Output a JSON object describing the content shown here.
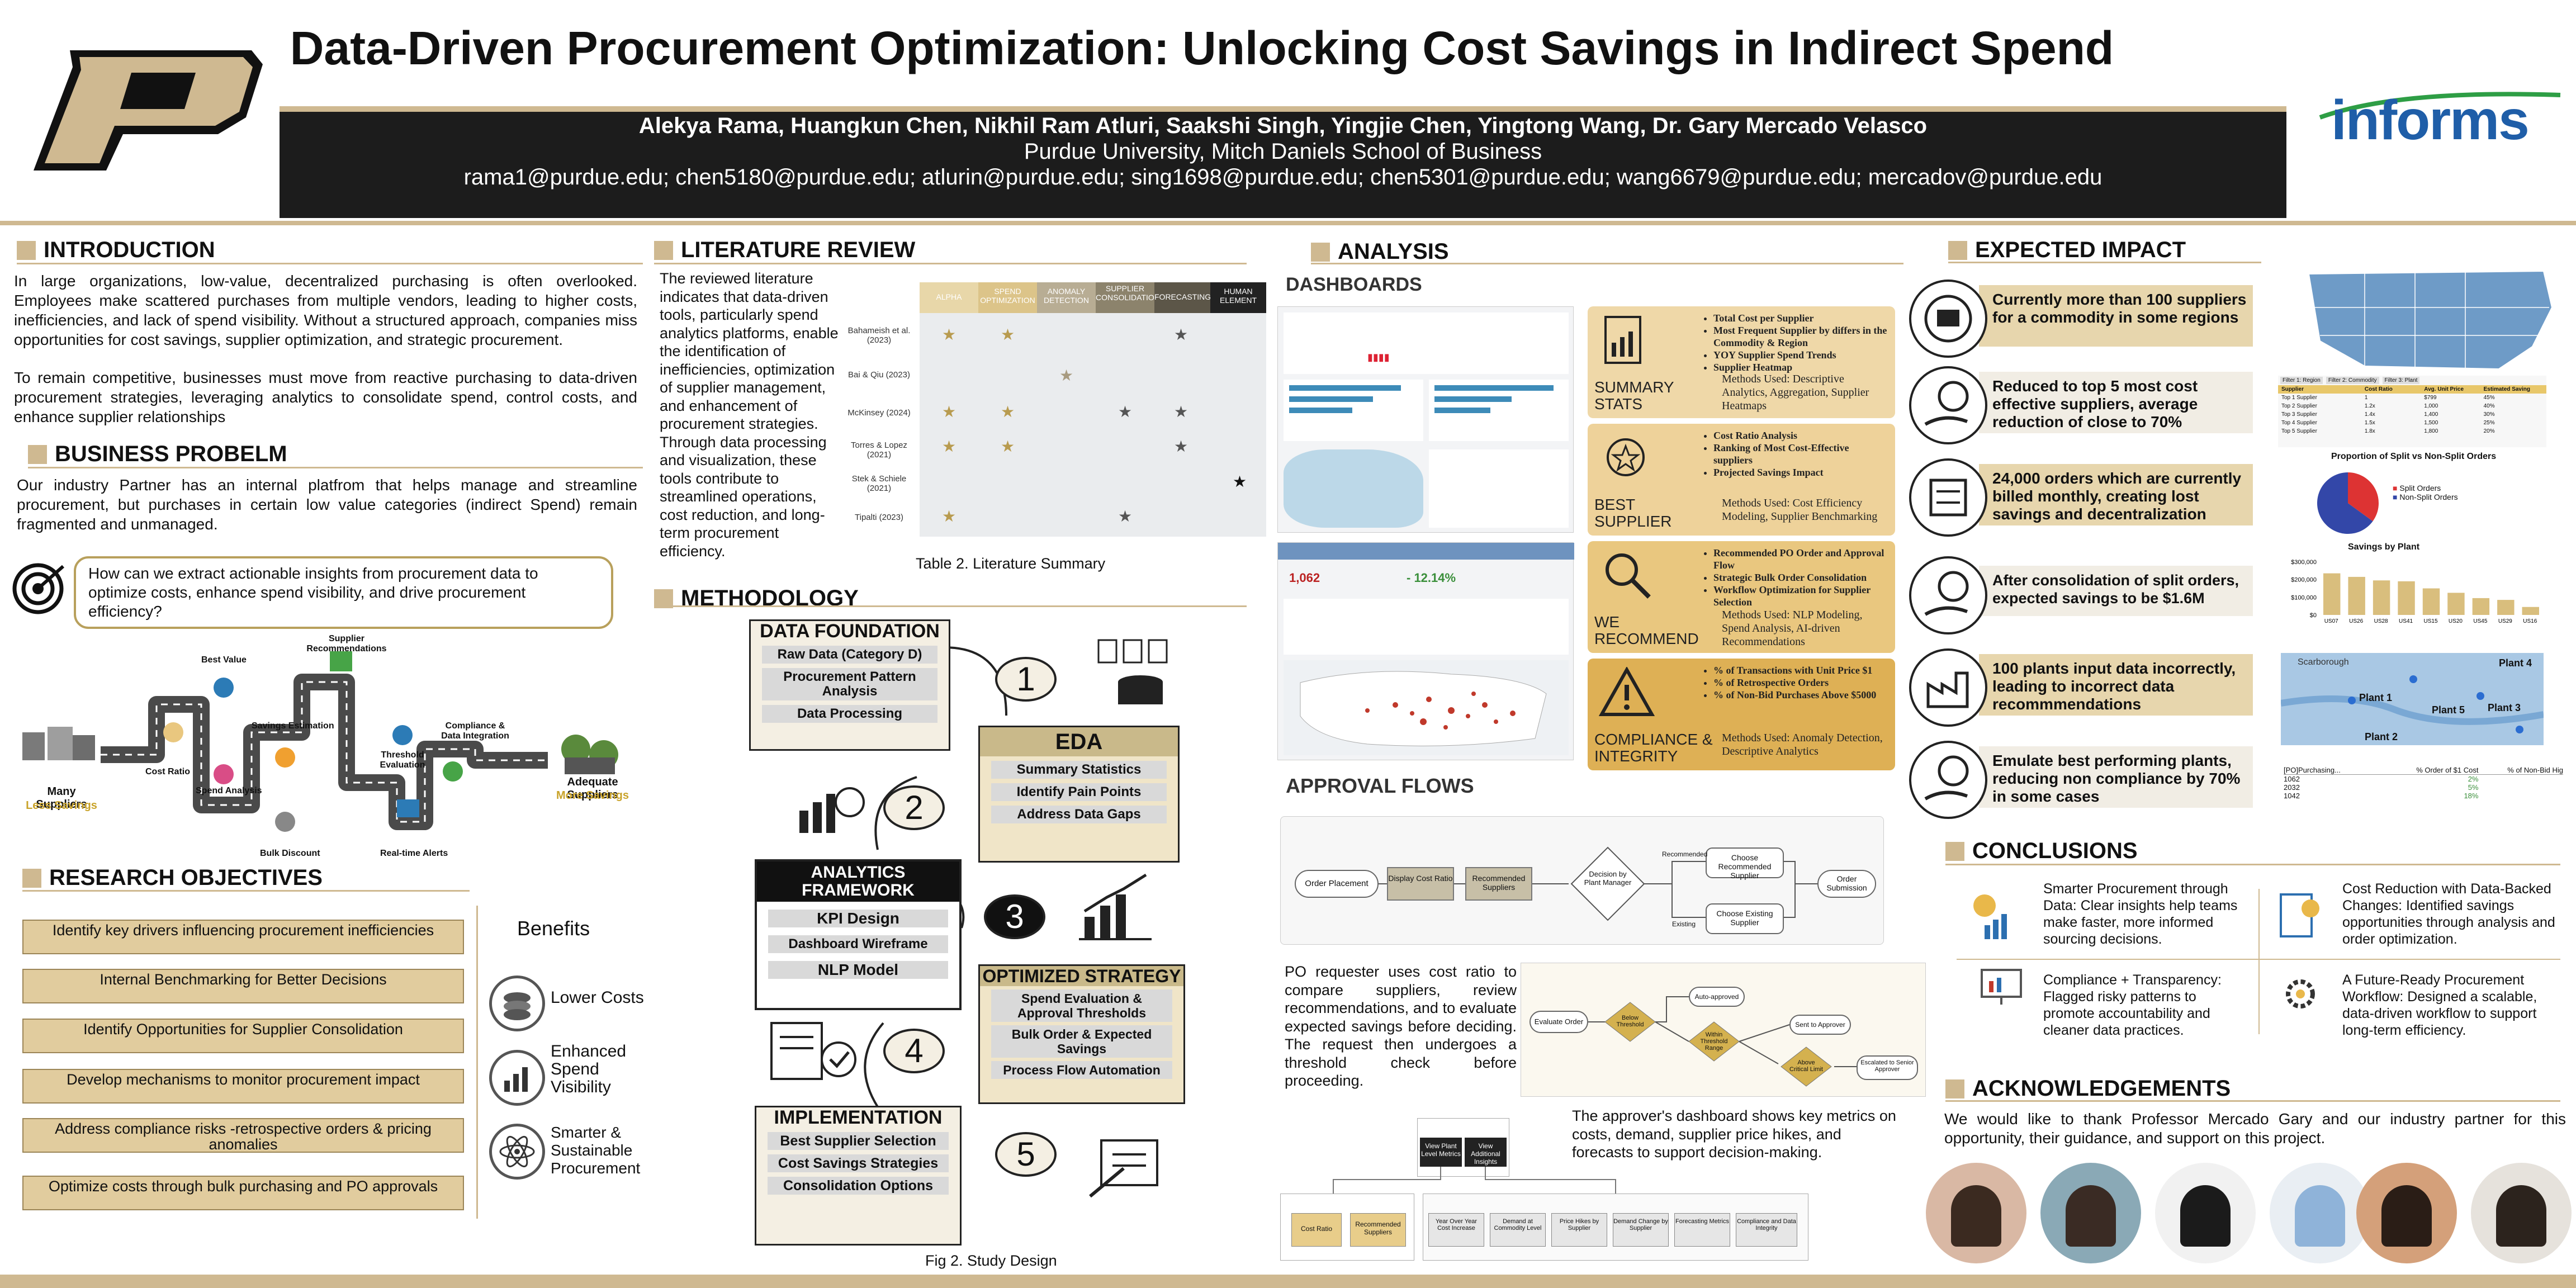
{
  "header": {
    "title": "Data-Driven Procurement Optimization: Unlocking Cost Savings in Indirect Spend",
    "authors": "Alekya Rama, Huangkun Chen, Nikhil Ram Atluri, Saakshi Singh, Yingjie Chen, Yingtong Wang, Dr. Gary Mercado Velasco",
    "affiliation": "Purdue University, Mitch Daniels School of Business",
    "emails": "rama1@purdue.edu; chen5180@purdue.edu; atlurin@purdue.edu; sing1698@purdue.edu; chen5301@purdue.edu; wang6679@purdue.edu; mercadov@purdue.edu",
    "informs": "informs"
  },
  "intro": {
    "title": "INTRODUCTION",
    "p1": "In large organizations, low-value, decentralized purchasing is often overlooked. Employees make scattered purchases from multiple vendors, leading to higher costs, inefficiencies, and lack of spend visibility. Without a structured approach, companies miss opportunities for cost savings, supplier optimization, and strategic procurement.",
    "p2": "To remain competitive, businesses must move from reactive purchasing to data-driven procurement strategies, leveraging analytics to consolidate spend, control costs, and enhance supplier relationships"
  },
  "problem": {
    "title": "BUSINESS PROBELM",
    "text": "Our industry Partner has an internal platfrom that helps manage and streamline procurement, but purchases in certain low value categories (indirect Spend) remain fragmented and unmanaged.",
    "question": "How can we extract actionable insights from procurement data to optimize costs, enhance spend visibility, and drive procurement efficiency?",
    "flow": {
      "many": "Many Suppliers",
      "less": "Less Savings",
      "cost_ratio": "Cost Ratio",
      "best_value": "Best Value",
      "spend": "Spend Analysis",
      "estimation": "Savings Estimation",
      "bulk": "Bulk Discount",
      "recommend": "Supplier Recommendations",
      "threshold": "Threshold Evaluation",
      "alerts": "Real-time Alerts",
      "compliance": "Compliance & Data Integration",
      "adequate": "Adequate Suppliers",
      "more": "More Savings"
    }
  },
  "objectives": {
    "title": "RESEARCH OBJECTIVES",
    "items": [
      "Identify key drivers influencing procurement inefficiencies",
      "Internal Benchmarking for Better Decisions",
      "Identify Opportunities  for Supplier Consolidation",
      "Develop mechanisms to monitor procurement impact",
      "Address compliance risks -retrospective orders & pricing anomalies",
      "Optimize costs through bulk purchasing and PO approvals"
    ],
    "benefits_title": "Benefits",
    "benefits": [
      "Lower Costs",
      "Enhanced Spend Visibility",
      "Smarter & Sustainable Procurement"
    ]
  },
  "lit": {
    "title": "LITERATURE REVIEW",
    "text": "The reviewed literature indicates that data-driven tools, particularly spend analytics platforms, enable the identification of inefficiencies, optimization of supplier management, and enhancement of procurement strategies. Through data processing and visualization, these tools contribute to streamlined operations, cost reduction, and long-term procurement efficiency.",
    "cols": [
      "ALPHA",
      "SPEND OPTIMIZATION",
      "ANOMALY DETECTION",
      "SUPPLIER CONSOLIDATION",
      "FORECASTING",
      "HUMAN ELEMENT"
    ],
    "rows": [
      "Bahameish et al. (2023)",
      "Bai & Qiu (2023)",
      "McKinsey (2024)",
      "Torres & Lopez (2021)",
      "Stek & Schiele (2021)",
      "Tipalti (2023)"
    ],
    "caption": "Table 2. Literature Summary"
  },
  "method": {
    "title": "METHODOLOGY",
    "s1": {
      "title": "DATA FOUNDATION",
      "items": [
        "Raw Data (Category D)",
        "Procurement Pattern Analysis",
        "Data Processing"
      ]
    },
    "s2": {
      "title": "EDA",
      "items": [
        "Summary Statistics",
        "Identify Pain Points",
        "Address Data Gaps"
      ]
    },
    "s3": {
      "title": "ANALYTICS FRAMEWORK",
      "items": [
        "KPI Design",
        "Dashboard Wireframe",
        "NLP Model"
      ]
    },
    "s4": {
      "title": "OPTIMIZED STRATEGY",
      "items": [
        "Spend Evaluation & Approval Thresholds",
        "Bulk Order & Expected Savings",
        "Process Flow Automation"
      ]
    },
    "s5": {
      "title": "IMPLEMENTATION",
      "items": [
        "Best Supplier Selection",
        "Cost Savings Strategies",
        "Consolidation Options"
      ]
    },
    "nums": [
      "1",
      "2",
      "3",
      "4",
      "5"
    ],
    "caption": "Fig 2. Study Design"
  },
  "analysis": {
    "title": "ANALYSIS",
    "dash": "DASHBOARDS",
    "kpi1": "1,062",
    "kpi2": "- 12.14%",
    "cards": [
      {
        "label": "SUMMARY STATS",
        "items": [
          "Total Cost per Supplier",
          "Most Frequent Supplier by differs in the Commodity & Region",
          "YOY Supplier Spend Trends",
          "Supplier Heatmap"
        ],
        "methods": "Methods Used: Descriptive Analytics, Aggregation, Supplier Heatmaps"
      },
      {
        "label": "BEST SUPPLIER",
        "items": [
          "Cost Ratio Analysis",
          "Ranking of Most Cost-Effective suppliers",
          "Projected Savings Impact"
        ],
        "methods": "Methods Used: Cost Efficiency Modeling, Supplier Benchmarking"
      },
      {
        "label": "WE RECOMMEND",
        "items": [
          "Recommended PO Order and Approval Flow",
          "Strategic Bulk Order Consolidation",
          "Workflow Optimization for Supplier Selection"
        ],
        "methods": "Methods Used: NLP Modeling, Spend Analysis, AI-driven Recommendations"
      },
      {
        "label": "COMPLIANCE & INTEGRITY",
        "items": [
          "% of Transactions with Unit Price $1",
          "% of Retrospective Orders",
          "% of Non-Bid Purchases Above $5000"
        ],
        "methods": "Methods Used: Anomaly Detection, Descriptive Analytics"
      }
    ],
    "flows": "APPROVAL FLOWS",
    "flow1": [
      "Order Placement",
      "Display Cost Ratio",
      "Recommended Suppliers",
      "Decision by Plant Manager",
      "Choose Recommended Supplier",
      "Choose Existing Supplier",
      "Order Submission"
    ],
    "flow1_edges": [
      "Recommended",
      "Existing"
    ],
    "flow2": [
      "Evaluate Order",
      "Below Threshold",
      "Within Threshold Range",
      "Above Critical Limit",
      "Auto-approved",
      "Sent to Approver",
      "Escalated to Senior Approver"
    ],
    "po_text": "PO requester uses cost ratio to compare suppliers, review recommendations, and to evaluate expected savings before deciding. The request then undergoes a threshold check before proceeding.",
    "approver_text": "The approver's dashboard shows key metrics on costs, demand, supplier price hikes, and forecasts to support decision-making.",
    "flow3": [
      "View Plant Level Metrics",
      "View Additional Insights",
      "Cost Ratio",
      "Recommended Suppliers",
      "Year Over Year Cost Increase",
      "Demand at Commodity Level",
      "Price Hikes by Supplier",
      "Demand Change by Supplier",
      "Forecasting Metrics",
      "Compliance and Data Integrity"
    ]
  },
  "impact": {
    "title": "EXPECTED IMPACT",
    "items": [
      "Currently more than 100 suppliers for a commodity in some regions",
      "Reduced to top 5 most cost effective suppliers, average reduction of close to 70%",
      "24,000 orders which are currently billed monthly, creating lost savings and decentralization",
      "After consolidation of split orders, expected savings to be $1.6M",
      "100 plants input data incorrectly, leading to incorrect data recommmendations",
      "Emulate best performing plants, reducing non compliance by 70% in  some cases"
    ],
    "pie_title": "Proportion of Split vs Non-Split Orders",
    "pie_legend": [
      "Split Orders",
      "Non-Split Orders"
    ],
    "bar_title": "Savings by Plant",
    "bar_ticks": [
      "$300,000",
      "$200,000",
      "$100,000",
      "$0"
    ],
    "bar_labels": [
      "US07",
      "US26",
      "US28",
      "US41",
      "US15",
      "US20",
      "US45",
      "US29",
      "US16"
    ],
    "map_labels": [
      "Plant 1",
      "Plant 2",
      "Plant 3",
      "Plant 4",
      "Plant 5",
      "Scarborough"
    ],
    "tbl_head": [
      "[PO]Purchasing...",
      "% Order of $1 Cost",
      "% of Non-Bid Hig"
    ],
    "tbl_rows": [
      [
        "1062",
        "2%",
        ""
      ],
      [
        "2032",
        "5%",
        ""
      ],
      [
        "1042",
        "18%",
        ""
      ]
    ],
    "filters": [
      "Filter 1: Region",
      "Filter 2: Commodity",
      "Filter 3: Plant"
    ],
    "supp_head": [
      "Supplier",
      "Cost Ratio",
      "Avg. Unit Price",
      "Estimated Saving"
    ],
    "supp_rows": [
      [
        "Top 1 Supplier",
        "1",
        "$799",
        "45%"
      ],
      [
        "Top 2 Supplier",
        "1.2x",
        "1,000",
        "40%"
      ],
      [
        "Top 3 Supplier",
        "1.4x",
        "1,400",
        "30%"
      ],
      [
        "Top 4 Supplier",
        "1.5x",
        "1,500",
        "25%"
      ],
      [
        "Top 5 Supplier",
        "1.8x",
        "1,800",
        "20%"
      ]
    ]
  },
  "chart_data": [
    {
      "type": "pie",
      "title": "Proportion of Split vs Non-Split Orders",
      "labels": [
        "Split Orders",
        "Non-Split Orders"
      ],
      "values": [
        35,
        65
      ]
    },
    {
      "type": "bar",
      "title": "Savings by Plant",
      "categories": [
        "US07",
        "US26",
        "US28",
        "US41",
        "US15",
        "US20",
        "US45",
        "US29",
        "US16"
      ],
      "values": [
        235000,
        215000,
        195000,
        190000,
        150000,
        125000,
        95000,
        85000,
        45000
      ],
      "ylim": [
        0,
        300000
      ]
    }
  ],
  "conclusions": {
    "title": "CONCLUSIONS",
    "items": [
      "Smarter Procurement through Data: Clear insights help teams make faster, more informed sourcing decisions.",
      "Cost Reduction with Data-Backed Changes: Identified savings opportunities through analysis and order optimization.",
      "Compliance + Transparency: Flagged risky patterns to promote accountability and cleaner data practices.",
      "A Future-Ready Procurement Workflow: Designed a scalable, data-driven workflow to support long-term efficiency."
    ]
  },
  "ack": {
    "title": "ACKNOWLEDGEMENTS",
    "text": "We would like to thank Professor Mercado Gary and our industry partner for this opportunity, their guidance, and support on this project."
  },
  "colors": {
    "gold": "#cfb991",
    "dark": "#1c1c1c",
    "card": "#efd8a8",
    "card2": "#e9c77f",
    "card3": "#deb055"
  }
}
